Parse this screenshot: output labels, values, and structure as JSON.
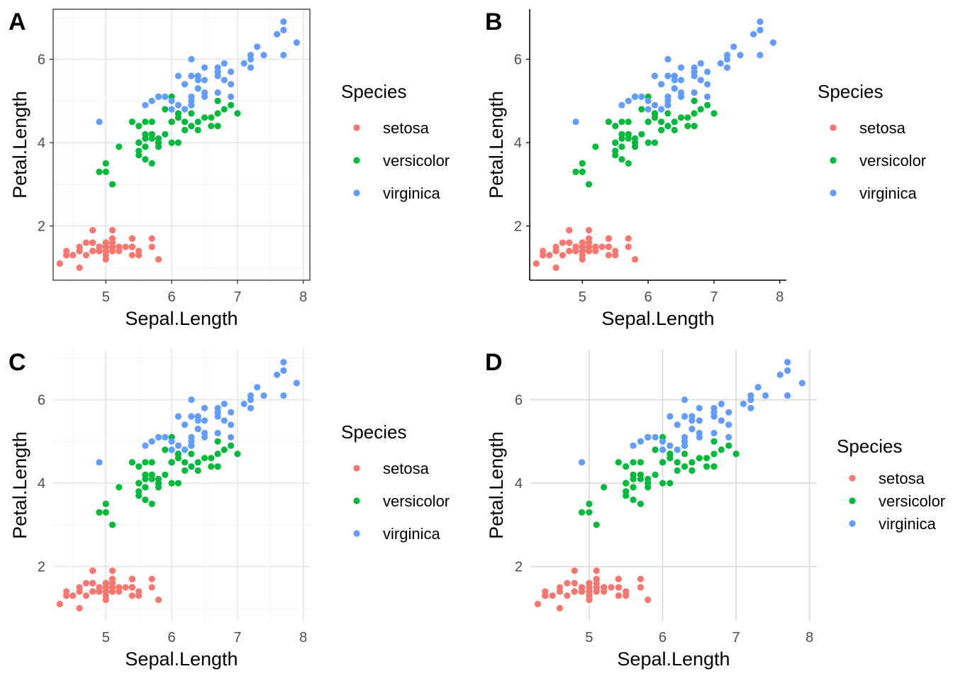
{
  "chart_data": [
    {
      "panel": "A",
      "theme": "bw",
      "type": "scatter",
      "xlabel": "Sepal.Length",
      "ylabel": "Petal.Length",
      "xticks": [
        "5",
        "6",
        "7",
        "8"
      ],
      "yticks": [
        "2",
        "4",
        "6"
      ],
      "xlim": [
        4.2,
        8.1
      ],
      "ylim": [
        0.7,
        7.2
      ],
      "grid": true,
      "legend": {
        "title": "Species",
        "placement": "right",
        "spacing": "wide"
      }
    },
    {
      "panel": "B",
      "theme": "classic",
      "type": "scatter",
      "xlabel": "Sepal.Length",
      "ylabel": "Petal.Length",
      "xticks": [
        "5",
        "6",
        "7",
        "8"
      ],
      "yticks": [
        "2",
        "4",
        "6"
      ],
      "xlim": [
        4.2,
        8.1
      ],
      "ylim": [
        0.7,
        7.2
      ],
      "grid": false,
      "legend": {
        "title": "Species",
        "placement": "right",
        "spacing": "wide"
      }
    },
    {
      "panel": "C",
      "theme": "minimal",
      "type": "scatter",
      "xlabel": "Sepal.Length",
      "ylabel": "Petal.Length",
      "xticks": [
        "5",
        "6",
        "7",
        "8"
      ],
      "yticks": [
        "2",
        "4",
        "6"
      ],
      "xlim": [
        4.2,
        8.1
      ],
      "ylim": [
        0.7,
        7.2
      ],
      "grid": true,
      "legend": {
        "title": "Species",
        "placement": "right",
        "spacing": "wide"
      }
    },
    {
      "panel": "D",
      "theme": "light-major-grid",
      "type": "scatter",
      "xlabel": "Sepal.Length",
      "ylabel": "Petal.Length",
      "xticks": [
        "5",
        "6",
        "7",
        "8"
      ],
      "yticks": [
        "2",
        "4",
        "6"
      ],
      "xlim": [
        4.2,
        8.1
      ],
      "ylim": [
        0.7,
        7.2
      ],
      "grid": true,
      "legend": {
        "title": "Species",
        "placement": "right",
        "spacing": "compact"
      }
    }
  ],
  "series": [
    {
      "name": "setosa",
      "color": "#F8766D",
      "points": [
        [
          5.1,
          1.4
        ],
        [
          4.9,
          1.4
        ],
        [
          4.7,
          1.3
        ],
        [
          4.6,
          1.5
        ],
        [
          5.0,
          1.4
        ],
        [
          5.4,
          1.7
        ],
        [
          4.6,
          1.4
        ],
        [
          5.0,
          1.5
        ],
        [
          4.4,
          1.4
        ],
        [
          4.9,
          1.5
        ],
        [
          5.4,
          1.5
        ],
        [
          4.8,
          1.6
        ],
        [
          4.8,
          1.4
        ],
        [
          4.3,
          1.1
        ],
        [
          5.8,
          1.2
        ],
        [
          5.7,
          1.5
        ],
        [
          5.4,
          1.3
        ],
        [
          5.1,
          1.4
        ],
        [
          5.7,
          1.7
        ],
        [
          5.1,
          1.5
        ],
        [
          5.4,
          1.7
        ],
        [
          5.1,
          1.5
        ],
        [
          4.6,
          1.0
        ],
        [
          5.1,
          1.7
        ],
        [
          4.8,
          1.9
        ],
        [
          5.0,
          1.6
        ],
        [
          5.0,
          1.6
        ],
        [
          5.2,
          1.5
        ],
        [
          5.2,
          1.4
        ],
        [
          4.7,
          1.6
        ],
        [
          4.8,
          1.6
        ],
        [
          5.4,
          1.5
        ],
        [
          5.2,
          1.5
        ],
        [
          5.5,
          1.4
        ],
        [
          4.9,
          1.5
        ],
        [
          5.0,
          1.2
        ],
        [
          5.5,
          1.3
        ],
        [
          4.9,
          1.4
        ],
        [
          4.4,
          1.3
        ],
        [
          5.1,
          1.5
        ],
        [
          5.0,
          1.3
        ],
        [
          4.5,
          1.3
        ],
        [
          4.4,
          1.3
        ],
        [
          5.0,
          1.6
        ],
        [
          5.1,
          1.9
        ],
        [
          4.8,
          1.4
        ],
        [
          5.1,
          1.6
        ],
        [
          4.6,
          1.4
        ],
        [
          5.3,
          1.5
        ],
        [
          5.0,
          1.4
        ]
      ]
    },
    {
      "name": "versicolor",
      "color": "#00BA38",
      "points": [
        [
          7.0,
          4.7
        ],
        [
          6.4,
          4.5
        ],
        [
          6.9,
          4.9
        ],
        [
          5.5,
          4.0
        ],
        [
          6.5,
          4.6
        ],
        [
          5.7,
          4.5
        ],
        [
          6.3,
          4.7
        ],
        [
          4.9,
          3.3
        ],
        [
          6.6,
          4.6
        ],
        [
          5.2,
          3.9
        ],
        [
          5.0,
          3.5
        ],
        [
          5.9,
          4.2
        ],
        [
          6.0,
          4.0
        ],
        [
          6.1,
          4.7
        ],
        [
          5.6,
          3.6
        ],
        [
          6.7,
          4.4
        ],
        [
          5.6,
          4.5
        ],
        [
          5.8,
          4.1
        ],
        [
          6.2,
          4.5
        ],
        [
          5.6,
          3.9
        ],
        [
          5.9,
          4.8
        ],
        [
          6.1,
          4.0
        ],
        [
          6.3,
          4.9
        ],
        [
          6.1,
          4.7
        ],
        [
          6.4,
          4.3
        ],
        [
          6.6,
          4.4
        ],
        [
          6.8,
          4.8
        ],
        [
          6.7,
          5.0
        ],
        [
          6.0,
          4.5
        ],
        [
          5.7,
          3.5
        ],
        [
          5.5,
          3.8
        ],
        [
          5.5,
          3.7
        ],
        [
          5.8,
          3.9
        ],
        [
          6.0,
          5.1
        ],
        [
          5.4,
          4.5
        ],
        [
          6.0,
          4.5
        ],
        [
          6.7,
          4.7
        ],
        [
          6.3,
          4.4
        ],
        [
          5.6,
          4.1
        ],
        [
          5.5,
          4.0
        ],
        [
          5.5,
          4.4
        ],
        [
          6.1,
          4.6
        ],
        [
          5.8,
          4.0
        ],
        [
          5.0,
          3.3
        ],
        [
          5.6,
          4.2
        ],
        [
          5.7,
          4.2
        ],
        [
          5.7,
          4.2
        ],
        [
          6.2,
          4.3
        ],
        [
          5.1,
          3.0
        ],
        [
          5.7,
          4.1
        ]
      ]
    },
    {
      "name": "virginica",
      "color": "#619CFF",
      "points": [
        [
          6.3,
          6.0
        ],
        [
          5.8,
          5.1
        ],
        [
          7.1,
          5.9
        ],
        [
          6.3,
          5.6
        ],
        [
          6.5,
          5.8
        ],
        [
          7.6,
          6.6
        ],
        [
          4.9,
          4.5
        ],
        [
          7.3,
          6.3
        ],
        [
          6.7,
          5.8
        ],
        [
          7.2,
          6.1
        ],
        [
          6.5,
          5.1
        ],
        [
          6.4,
          5.3
        ],
        [
          6.8,
          5.5
        ],
        [
          5.7,
          5.0
        ],
        [
          5.8,
          5.1
        ],
        [
          6.4,
          5.3
        ],
        [
          6.5,
          5.5
        ],
        [
          7.7,
          6.7
        ],
        [
          7.7,
          6.9
        ],
        [
          6.0,
          5.0
        ],
        [
          6.9,
          5.7
        ],
        [
          5.6,
          4.9
        ],
        [
          7.7,
          6.7
        ],
        [
          6.3,
          4.9
        ],
        [
          6.7,
          5.7
        ],
        [
          7.2,
          6.0
        ],
        [
          6.2,
          4.8
        ],
        [
          6.1,
          4.9
        ],
        [
          6.4,
          5.6
        ],
        [
          7.2,
          5.8
        ],
        [
          7.4,
          6.1
        ],
        [
          7.9,
          6.4
        ],
        [
          6.4,
          5.6
        ],
        [
          6.3,
          5.1
        ],
        [
          6.1,
          5.6
        ],
        [
          7.7,
          6.1
        ],
        [
          6.3,
          5.6
        ],
        [
          6.4,
          5.5
        ],
        [
          6.0,
          4.8
        ],
        [
          6.9,
          5.4
        ],
        [
          6.7,
          5.6
        ],
        [
          6.9,
          5.1
        ],
        [
          5.8,
          5.1
        ],
        [
          6.8,
          5.9
        ],
        [
          6.7,
          5.7
        ],
        [
          6.7,
          5.2
        ],
        [
          6.3,
          5.0
        ],
        [
          6.5,
          5.2
        ],
        [
          6.2,
          5.4
        ],
        [
          5.9,
          5.1
        ]
      ]
    }
  ]
}
